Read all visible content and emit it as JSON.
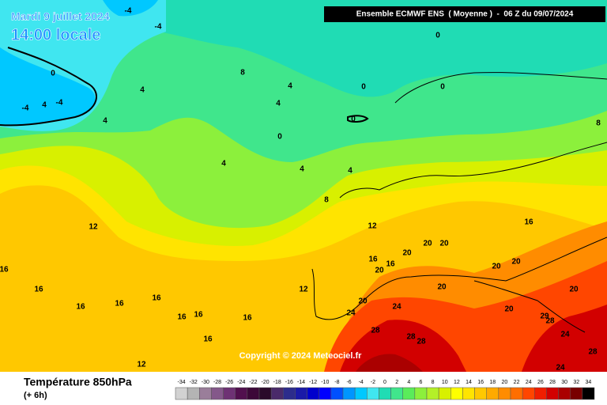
{
  "header": {
    "date": "Mardi 9 juillet 2024",
    "time": "14:00 locale",
    "model": "Ensemble ECMWF ENS  ( Moyenne )  -  06 Z du 09/07/2024"
  },
  "copyright": "Copyright © 2024 Meteociel.fr",
  "footer": {
    "title": "Température 850hPa",
    "subtitle": "(+ 6h)"
  },
  "scale": {
    "values": [
      -34,
      -32,
      -30,
      -28,
      -26,
      -24,
      -22,
      -20,
      -18,
      -16,
      -14,
      -12,
      -10,
      -8,
      -6,
      -4,
      -2,
      0,
      2,
      4,
      6,
      8,
      10,
      12,
      14,
      16,
      18,
      20,
      22,
      24,
      26,
      28,
      30,
      32,
      34
    ],
    "colors": [
      "#d2d2d2",
      "#b4b4b4",
      "#9a7e9a",
      "#84588a",
      "#6e3274",
      "#52104e",
      "#3c0838",
      "#2a0a2a",
      "#4a2a6a",
      "#2c2c8c",
      "#1a1aa8",
      "#0000cc",
      "#0000ff",
      "#0050ff",
      "#0096ff",
      "#00c8ff",
      "#40e6f0",
      "#20dcb4",
      "#40e68c",
      "#5aec5a",
      "#8cf03c",
      "#b4f028",
      "#d8f000",
      "#ffff00",
      "#ffe400",
      "#ffc800",
      "#ffaa00",
      "#ff8c00",
      "#ff6e00",
      "#ff4600",
      "#f01e00",
      "#d20000",
      "#aa0000",
      "#780000",
      "#000000"
    ]
  },
  "contour_labels": [
    -4,
    -4,
    0,
    -4,
    4,
    -4,
    4,
    4,
    8,
    4,
    0,
    0,
    0,
    4,
    0,
    0,
    4,
    4,
    4,
    8,
    8,
    12,
    12,
    16,
    16,
    16,
    16,
    16,
    16,
    16,
    16,
    16,
    16,
    16,
    16,
    12,
    20,
    20,
    20,
    20,
    20,
    20,
    20,
    20,
    20,
    20,
    24,
    24,
    28,
    28,
    28,
    29,
    28,
    24,
    28,
    24,
    12
  ]
}
